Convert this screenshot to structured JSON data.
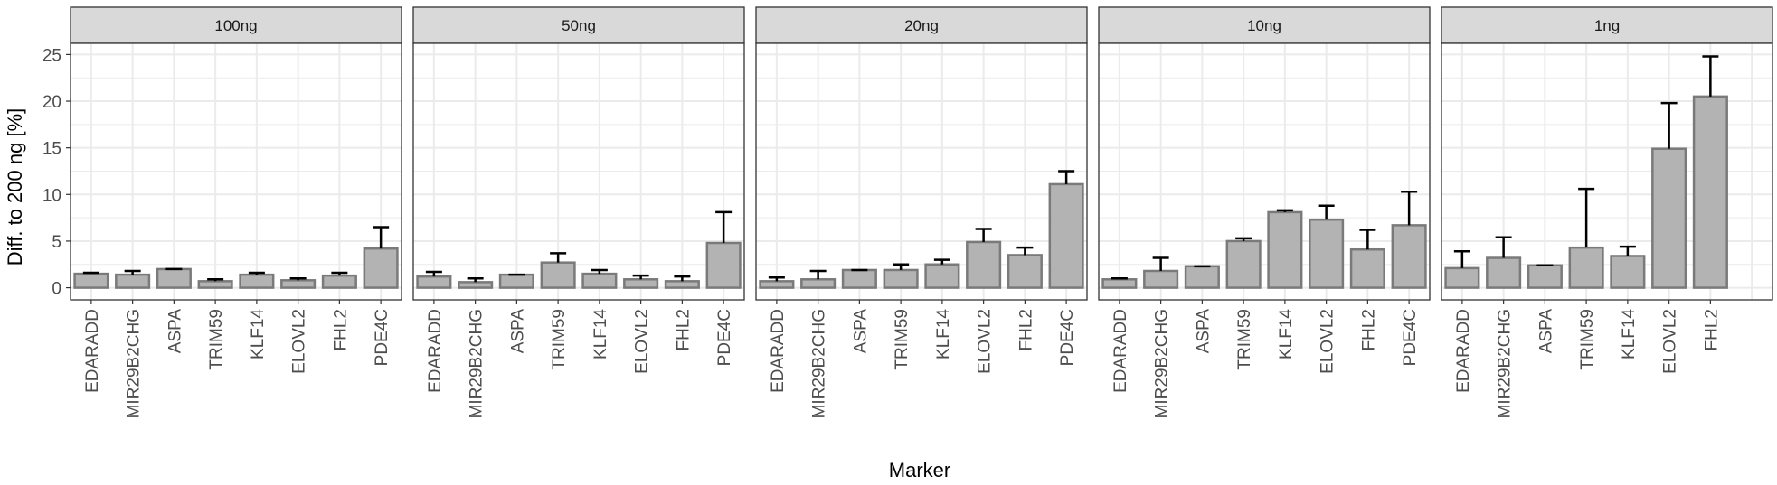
{
  "chart_data": {
    "type": "bar",
    "xlabel": "Marker",
    "ylabel": "Diff. to 200 ng [%]",
    "ylim": [
      -1.3,
      26.2
    ],
    "yticks": [
      0,
      5,
      10,
      15,
      20,
      25
    ],
    "grid": true,
    "error_bars": "upper",
    "colors": {
      "bar_fill": "#b3b3b3",
      "bar_stroke": "#7a7a7a",
      "strip_fill": "#d9d9d9",
      "panel_border": "#333333",
      "grid": "#ebebeb",
      "error_bar": "#000000"
    },
    "panels": [
      {
        "label": "100ng",
        "categories": [
          "EDARADD",
          "MIR29B2CHG",
          "ASPA",
          "TRIM59",
          "KLF14",
          "ELOVL2",
          "FHL2",
          "PDE4C"
        ],
        "values": [
          1.5,
          1.4,
          2.0,
          0.7,
          1.4,
          0.8,
          1.3,
          4.2
        ],
        "error_upper": [
          1.6,
          1.8,
          2.0,
          0.9,
          1.6,
          1.0,
          1.6,
          6.5
        ]
      },
      {
        "label": "50ng",
        "categories": [
          "EDARADD",
          "MIR29B2CHG",
          "ASPA",
          "TRIM59",
          "KLF14",
          "ELOVL2",
          "FHL2",
          "PDE4C"
        ],
        "values": [
          1.2,
          0.6,
          1.4,
          2.7,
          1.5,
          0.9,
          0.7,
          4.8
        ],
        "error_upper": [
          1.7,
          1.0,
          1.4,
          3.7,
          1.9,
          1.3,
          1.2,
          8.1
        ]
      },
      {
        "label": "20ng",
        "categories": [
          "EDARADD",
          "MIR29B2CHG",
          "ASPA",
          "TRIM59",
          "KLF14",
          "ELOVL2",
          "FHL2",
          "PDE4C"
        ],
        "values": [
          0.7,
          0.9,
          1.9,
          1.9,
          2.5,
          4.9,
          3.5,
          11.1
        ],
        "error_upper": [
          1.1,
          1.8,
          1.9,
          2.5,
          3.0,
          6.3,
          4.3,
          12.5
        ]
      },
      {
        "label": "10ng",
        "categories": [
          "EDARADD",
          "MIR29B2CHG",
          "ASPA",
          "TRIM59",
          "KLF14",
          "ELOVL2",
          "FHL2",
          "PDE4C"
        ],
        "values": [
          0.9,
          1.8,
          2.3,
          5.0,
          8.1,
          7.3,
          4.1,
          6.7
        ],
        "error_upper": [
          1.0,
          3.2,
          2.3,
          5.3,
          8.3,
          8.8,
          6.2,
          10.3
        ]
      },
      {
        "label": "1ng",
        "categories": [
          "EDARADD",
          "MIR29B2CHG",
          "ASPA",
          "TRIM59",
          "KLF14",
          "ELOVL2",
          "FHL2"
        ],
        "values": [
          2.1,
          3.2,
          2.4,
          4.3,
          3.4,
          14.9,
          20.5
        ],
        "error_upper": [
          3.9,
          5.4,
          2.4,
          10.6,
          4.4,
          19.8,
          24.8
        ]
      }
    ]
  }
}
